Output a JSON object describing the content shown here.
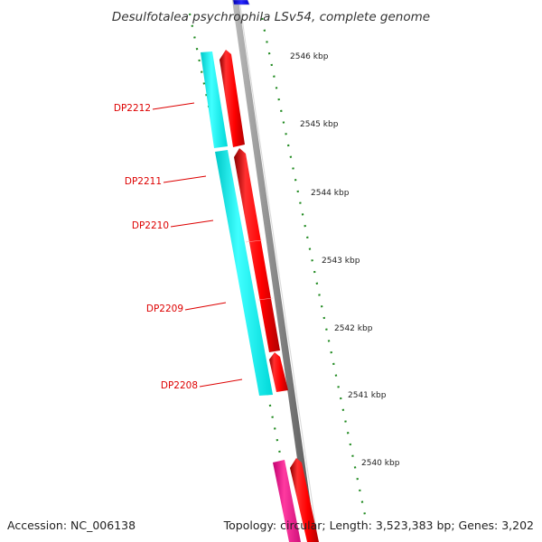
{
  "title": "Desulfotalea psychrophila LSv54, complete genome",
  "footer": {
    "accession": "Accession: NC_006138",
    "summary": "Topology: circular; Length: 3,523,383 bp; Genes: 3,202"
  },
  "ruler": {
    "ticks": [
      "2546 kbp",
      "2545 kbp",
      "2544 kbp",
      "2543 kbp",
      "2542 kbp",
      "2541 kbp",
      "2540 kbp"
    ]
  },
  "gene_labels": [
    "DP2212",
    "DP2211",
    "DP2210",
    "DP2209",
    "DP2208"
  ],
  "colors": {
    "forward_cds": "#ff0000",
    "reverse_cds": "#00ffff",
    "rna_feature": "#ff1493",
    "top_feature": "#0000ff",
    "backbone": "#808080",
    "tick": "#228b22",
    "label": "#dd0000",
    "label_line": "#dd0000"
  }
}
